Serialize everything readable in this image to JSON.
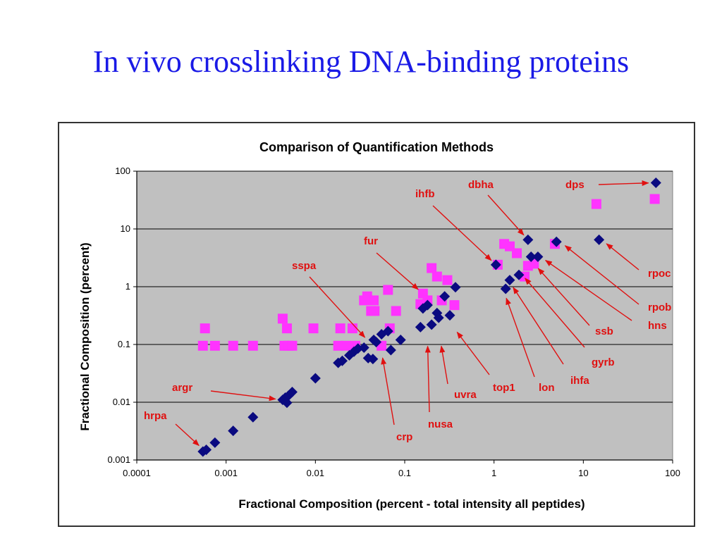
{
  "slide": {
    "title": "In vivo crosslinking DNA-binding proteins"
  },
  "colors": {
    "title": "#1a1ae6",
    "series_a": "#ff33ff",
    "series_b": "#0a0a80",
    "annotation": "#e01010",
    "plot_bg": "#c0c0c0"
  },
  "chart_data": {
    "type": "scatter",
    "title": "Comparison of Quantification Methods",
    "xlabel": "Fractional Composition (percent - total intensity all peptides)",
    "ylabel": "Fractional Composition (percent)",
    "xscale": "log",
    "yscale": "log",
    "xlim": [
      0.0001,
      100
    ],
    "ylim": [
      0.001,
      100
    ],
    "xticks": [
      "0.0001",
      "0.001",
      "0.01",
      "0.1",
      "1",
      "10",
      "100"
    ],
    "yticks": [
      "0.001",
      "0.01",
      "0.1",
      "1",
      "10",
      "100"
    ],
    "grid": "horizontal major",
    "legend": "none",
    "series": [
      {
        "marker": "square",
        "color": "#ff33ff",
        "points": [
          [
            0.00055,
            0.095
          ],
          [
            0.00058,
            0.19
          ],
          [
            0.00075,
            0.095
          ],
          [
            0.0012,
            0.095
          ],
          [
            0.002,
            0.095
          ],
          [
            0.0043,
            0.28
          ],
          [
            0.0045,
            0.095
          ],
          [
            0.0048,
            0.19
          ],
          [
            0.005,
            0.095
          ],
          [
            0.0055,
            0.095
          ],
          [
            0.0095,
            0.19
          ],
          [
            0.018,
            0.095
          ],
          [
            0.019,
            0.19
          ],
          [
            0.022,
            0.095
          ],
          [
            0.026,
            0.19
          ],
          [
            0.028,
            0.095
          ],
          [
            0.035,
            0.58
          ],
          [
            0.038,
            0.68
          ],
          [
            0.042,
            0.38
          ],
          [
            0.045,
            0.58
          ],
          [
            0.046,
            0.38
          ],
          [
            0.055,
            0.095
          ],
          [
            0.065,
            0.88
          ],
          [
            0.068,
            0.19
          ],
          [
            0.08,
            0.38
          ],
          [
            0.15,
            0.5
          ],
          [
            0.16,
            0.76
          ],
          [
            0.18,
            0.58
          ],
          [
            0.2,
            2.1
          ],
          [
            0.23,
            1.5
          ],
          [
            0.26,
            0.58
          ],
          [
            0.3,
            1.3
          ],
          [
            0.36,
            0.48
          ],
          [
            1.1,
            2.4
          ],
          [
            1.3,
            5.5
          ],
          [
            1.5,
            5.0
          ],
          [
            1.8,
            3.8
          ],
          [
            2.2,
            1.5
          ],
          [
            2.4,
            2.3
          ],
          [
            2.8,
            2.5
          ],
          [
            4.8,
            5.5
          ],
          [
            14,
            27
          ],
          [
            63,
            33
          ]
        ]
      },
      {
        "marker": "diamond",
        "color": "#0a0a80",
        "points": [
          [
            0.00055,
            0.0014
          ],
          [
            0.0006,
            0.0015
          ],
          [
            0.00075,
            0.002
          ],
          [
            0.0012,
            0.0032
          ],
          [
            0.002,
            0.0055
          ],
          [
            0.0043,
            0.011
          ],
          [
            0.0046,
            0.012
          ],
          [
            0.0048,
            0.0098
          ],
          [
            0.005,
            0.013
          ],
          [
            0.0055,
            0.015
          ],
          [
            0.01,
            0.026
          ],
          [
            0.018,
            0.048
          ],
          [
            0.02,
            0.052
          ],
          [
            0.024,
            0.065
          ],
          [
            0.027,
            0.075
          ],
          [
            0.03,
            0.085
          ],
          [
            0.035,
            0.088
          ],
          [
            0.039,
            0.058
          ],
          [
            0.044,
            0.056
          ],
          [
            0.045,
            0.12
          ],
          [
            0.048,
            0.11
          ],
          [
            0.055,
            0.15
          ],
          [
            0.065,
            0.17
          ],
          [
            0.07,
            0.08
          ],
          [
            0.09,
            0.12
          ],
          [
            0.15,
            0.2
          ],
          [
            0.16,
            0.42
          ],
          [
            0.18,
            0.48
          ],
          [
            0.2,
            0.22
          ],
          [
            0.23,
            0.35
          ],
          [
            0.24,
            0.29
          ],
          [
            0.28,
            0.68
          ],
          [
            0.32,
            0.32
          ],
          [
            0.37,
            0.98
          ],
          [
            1.05,
            2.4
          ],
          [
            1.35,
            0.92
          ],
          [
            1.5,
            1.3
          ],
          [
            1.9,
            1.6
          ],
          [
            2.4,
            6.5
          ],
          [
            2.6,
            3.3
          ],
          [
            3.1,
            3.3
          ],
          [
            5.0,
            6.0
          ],
          [
            15,
            6.5
          ],
          [
            65,
            63
          ]
        ]
      }
    ],
    "annotations": [
      {
        "label": "dbha"
      },
      {
        "label": "ihfb"
      },
      {
        "label": "dps"
      },
      {
        "label": "fur"
      },
      {
        "label": "sspa"
      },
      {
        "label": "rpoc"
      },
      {
        "label": "rpob"
      },
      {
        "label": "hns"
      },
      {
        "label": "ssb"
      },
      {
        "label": "gyrb"
      },
      {
        "label": "ihfa"
      },
      {
        "label": "lon"
      },
      {
        "label": "top1"
      },
      {
        "label": "uvra"
      },
      {
        "label": "nusa"
      },
      {
        "label": "crp"
      },
      {
        "label": "argr"
      },
      {
        "label": "hrpa"
      }
    ]
  }
}
